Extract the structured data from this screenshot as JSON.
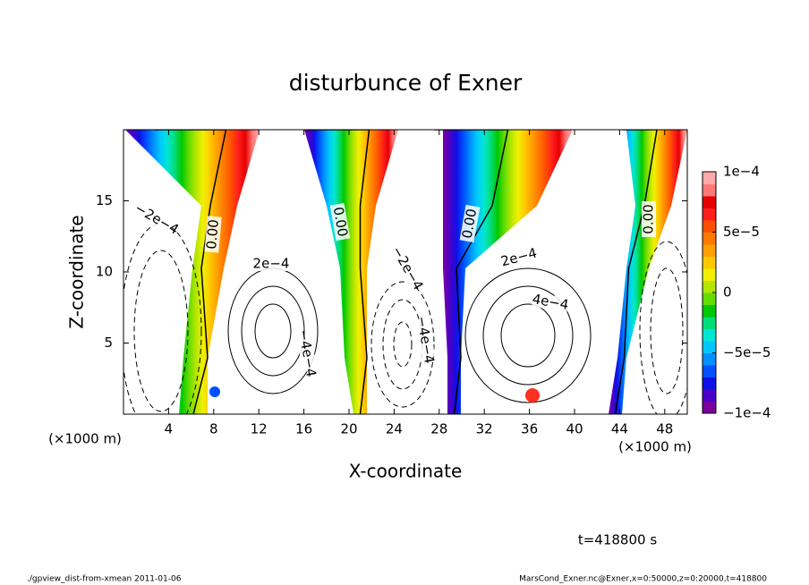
{
  "chart_data": {
    "type": "contour",
    "title": "disturbunce of Exner",
    "xlabel": "X-coordinate",
    "ylabel": "Z-coordinate",
    "x_unit": "(×1000 m)",
    "y_unit": "(×1000 m)",
    "xlim": [
      0,
      50
    ],
    "xticks": [
      4,
      8,
      12,
      16,
      20,
      24,
      28,
      32,
      36,
      40,
      44,
      48
    ],
    "ylim": [
      0,
      20
    ],
    "yticks": [
      5,
      10,
      15
    ],
    "colorbar": {
      "clim": [
        -0.0001,
        0.0001
      ],
      "colors": [
        "#7b00a0",
        "#4a00c8",
        "#1010e6",
        "#0050ff",
        "#0090ff",
        "#00c8ff",
        "#00e6d2",
        "#00dc78",
        "#00c800",
        "#64dc00",
        "#b4e600",
        "#f0f000",
        "#ffc800",
        "#ffa000",
        "#ff7800",
        "#ff5000",
        "#ff1e1e",
        "#e60000",
        "#ff7878",
        "#ffaaaa"
      ],
      "ticks": [
        {
          "value": -0.0001,
          "label": "−1e−4"
        },
        {
          "value": -5e-05,
          "label": "−5e−5"
        },
        0,
        {
          "value": 5e-05,
          "label": "5e−5"
        },
        {
          "value": 0.0001,
          "label": "1e−4"
        }
      ]
    },
    "contour_labels": [
      "−2e−4",
      "0.00",
      "2e−4",
      "−4e−4",
      "0.00",
      "−2e−4",
      "−4e−4",
      "0.00",
      "2e−4",
      "4e−4",
      "0.00"
    ],
    "time_label": "t=418800 s",
    "footer_left": "./gpview_dist-from-xmean  2011-01-06",
    "footer_right": "MarsCond_Exner.nc@Exner,x=0:50000,z=0:20000,t=418800"
  }
}
